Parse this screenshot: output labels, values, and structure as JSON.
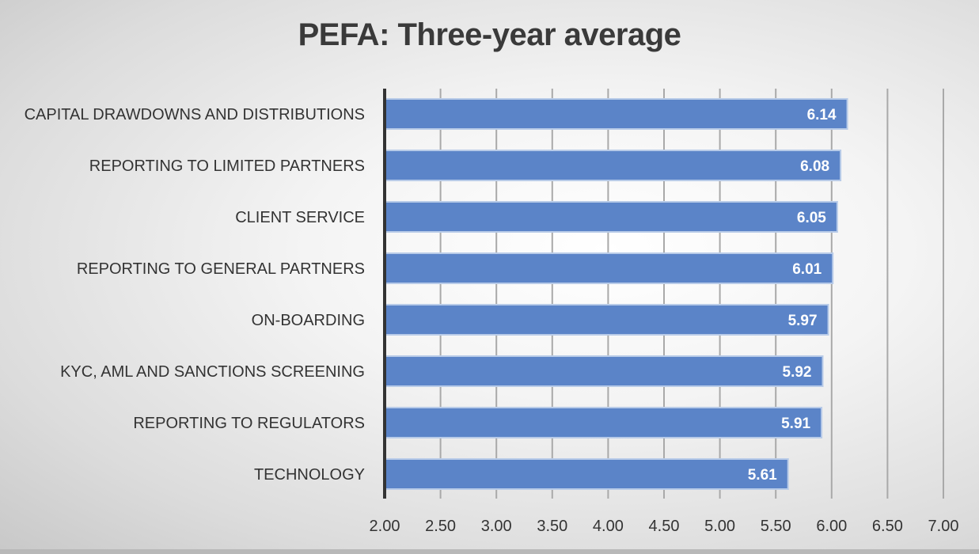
{
  "chart_data": {
    "type": "bar",
    "orientation": "horizontal",
    "title": "PEFA: Three-year average",
    "xlabel": "",
    "ylabel": "",
    "categories": [
      "CAPITAL DRAWDOWNS AND DISTRIBUTIONS",
      "REPORTING TO LIMITED PARTNERS",
      "CLIENT SERVICE",
      "REPORTING TO GENERAL PARTNERS",
      "ON-BOARDING",
      "KYC, AML AND SANCTIONS SCREENING",
      "REPORTING TO REGULATORS",
      "TECHNOLOGY"
    ],
    "values": [
      6.14,
      6.08,
      6.05,
      6.01,
      5.97,
      5.92,
      5.91,
      5.61
    ],
    "value_labels": [
      "6.14",
      "6.08",
      "6.05",
      "6.01",
      "5.97",
      "5.92",
      "5.91",
      "5.61"
    ],
    "xlim": [
      2.0,
      7.0
    ],
    "xticks": [
      2.0,
      2.5,
      3.0,
      3.5,
      4.0,
      4.5,
      5.0,
      5.5,
      6.0,
      6.5,
      7.0
    ],
    "xtick_labels": [
      "2.00",
      "2.50",
      "3.00",
      "3.50",
      "4.00",
      "4.50",
      "5.00",
      "5.50",
      "6.00",
      "6.50",
      "7.00"
    ],
    "grid": "vertical",
    "legend": "none",
    "bar_color": "#5b84c8",
    "bar_edge_color": "#b8cbe8"
  }
}
